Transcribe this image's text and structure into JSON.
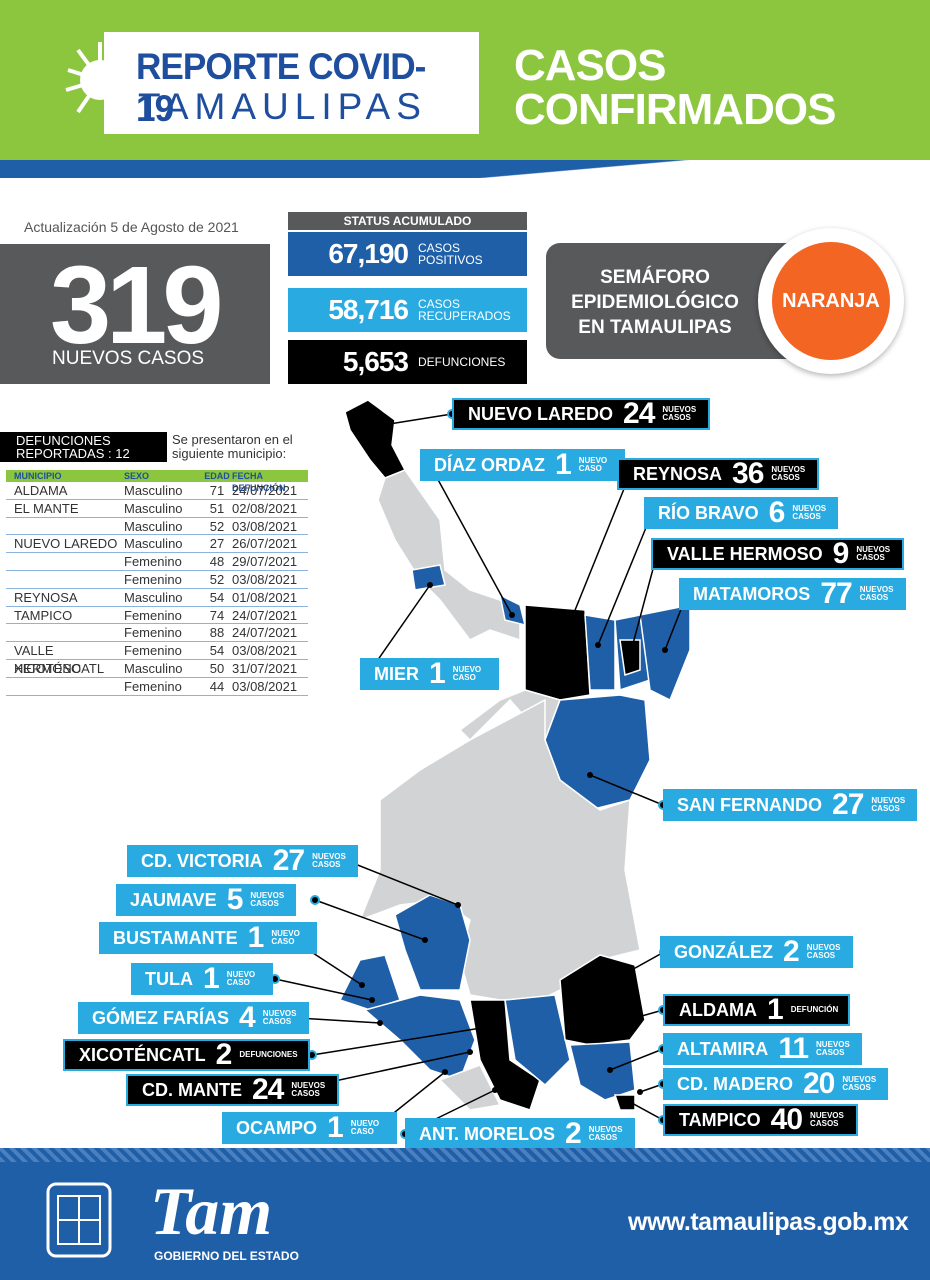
{
  "header": {
    "title": "REPORTE COVID-19",
    "subtitle": "TAMAULIPAS",
    "section": [
      "CASOS",
      "CONFIRMADOS"
    ]
  },
  "update": "Actualización 5 de Agosto de 2021",
  "new_cases": {
    "value": 319,
    "label": "NUEVOS CASOS"
  },
  "status": {
    "title": "STATUS ACUMULADO",
    "items": [
      {
        "value": "67,190",
        "label": [
          "CASOS",
          "POSITIVOS"
        ],
        "color": "#1f5fa8"
      },
      {
        "value": "58,716",
        "label": [
          "CASOS",
          "RECUPERADOS"
        ],
        "color": "#29abe2"
      },
      {
        "value": "5,653",
        "label": [
          "DEFUNCIONES"
        ],
        "color": "#000000"
      }
    ]
  },
  "semaforo": {
    "label": [
      "SEMÁFORO",
      "EPIDEMIOLÓGICO",
      "EN TAMAULIPAS"
    ],
    "level": "NARANJA"
  },
  "deaths": {
    "title": [
      "DEFUNCIONES",
      "REPORTADAS : 12"
    ],
    "note": [
      "Se presentaron en el",
      "siguiente municipio:"
    ],
    "columns": [
      "MUNICIPIO",
      "SEXO",
      "EDAD",
      "FECHA DEFUNCIÓN"
    ],
    "groups": [
      {
        "municipio": "ALDAMA",
        "cases": [
          [
            "Masculino",
            71,
            "24/07/2021"
          ]
        ]
      },
      {
        "municipio": "EL MANTE",
        "cases": [
          [
            "Masculino",
            51,
            "02/08/2021"
          ],
          [
            "Masculino",
            52,
            "03/08/2021"
          ]
        ]
      },
      {
        "municipio": "NUEVO LAREDO",
        "cases": [
          [
            "Masculino",
            27,
            "26/07/2021"
          ],
          [
            "Femenino",
            48,
            "29/07/2021"
          ],
          [
            "Femenino",
            52,
            "03/08/2021"
          ]
        ]
      },
      {
        "municipio": "REYNOSA",
        "cases": [
          [
            "Masculino",
            54,
            "01/08/2021"
          ]
        ]
      },
      {
        "municipio": "TAMPICO",
        "cases": [
          [
            "Femenino",
            74,
            "24/07/2021"
          ],
          [
            "Femenino",
            88,
            "24/07/2021"
          ]
        ]
      },
      {
        "municipio": "VALLE HERMOSO",
        "cases": [
          [
            "Femenino",
            54,
            "03/08/2021"
          ]
        ]
      },
      {
        "municipio": "XICOTÉNCATL",
        "cases": [
          [
            "Masculino",
            50,
            "31/07/2021"
          ],
          [
            "Femenino",
            44,
            "03/08/2021"
          ]
        ]
      }
    ]
  },
  "map_labels": [
    {
      "name": "NUEVO LAREDO",
      "count": 24,
      "unit": "NUEVOS CASOS",
      "color": "#000000"
    },
    {
      "name": "DÍAZ ORDAZ",
      "count": 1,
      "unit": "NUEVO CASO",
      "color": "#29abe2"
    },
    {
      "name": "REYNOSA",
      "count": 36,
      "unit": "NUEVOS CASOS",
      "color": "#000000"
    },
    {
      "name": "RÍO BRAVO",
      "count": 6,
      "unit": "NUEVOS CASOS",
      "color": "#29abe2"
    },
    {
      "name": "VALLE HERMOSO",
      "count": 9,
      "unit": "NUEVOS CASOS",
      "color": "#000000"
    },
    {
      "name": "MATAMOROS",
      "count": 77,
      "unit": "NUEVOS CASOS",
      "color": "#29abe2"
    },
    {
      "name": "MIER",
      "count": 1,
      "unit": "NUEVO CASO",
      "color": "#29abe2"
    },
    {
      "name": "SAN FERNANDO",
      "count": 27,
      "unit": "NUEVOS CASOS",
      "color": "#29abe2"
    },
    {
      "name": "CD. VICTORIA",
      "count": 27,
      "unit": "NUEVOS CASOS",
      "color": "#29abe2"
    },
    {
      "name": "JAUMAVE",
      "count": 5,
      "unit": "NUEVOS CASOS",
      "color": "#29abe2"
    },
    {
      "name": "BUSTAMANTE",
      "count": 1,
      "unit": "NUEVO CASO",
      "color": "#29abe2"
    },
    {
      "name": "TULA",
      "count": 1,
      "unit": "NUEVO CASO",
      "color": "#29abe2"
    },
    {
      "name": "GÓMEZ FARÍAS",
      "count": 4,
      "unit": "NUEVOS CASOS",
      "color": "#29abe2"
    },
    {
      "name": "XICOTÉNCATL",
      "count": 2,
      "unit": "DEFUNCIONES",
      "color": "#000000"
    },
    {
      "name": "CD. MANTE",
      "count": 24,
      "unit": "NUEVOS CASOS",
      "color": "#000000"
    },
    {
      "name": "OCAMPO",
      "count": 1,
      "unit": "NUEVO CASO",
      "color": "#29abe2"
    },
    {
      "name": "ANT. MORELOS",
      "count": 2,
      "unit": "NUEVOS CASOS",
      "color": "#29abe2"
    },
    {
      "name": "GONZÁLEZ",
      "count": 2,
      "unit": "NUEVOS CASOS",
      "color": "#29abe2"
    },
    {
      "name": "ALDAMA",
      "count": 1,
      "unit": "DEFUNCIÓN",
      "color": "#000000"
    },
    {
      "name": "ALTAMIRA",
      "count": 11,
      "unit": "NUEVOS CASOS",
      "color": "#29abe2"
    },
    {
      "name": "CD. MADERO",
      "count": 20,
      "unit": "NUEVOS CASOS",
      "color": "#29abe2"
    },
    {
      "name": "TAMPICO",
      "count": 40,
      "unit": "NUEVOS CASOS",
      "color": "#000000"
    }
  ],
  "footer": {
    "logo": "Tam",
    "caption": "GOBIERNO DEL ESTADO",
    "url": "www.tamaulipas.gob.mx"
  }
}
